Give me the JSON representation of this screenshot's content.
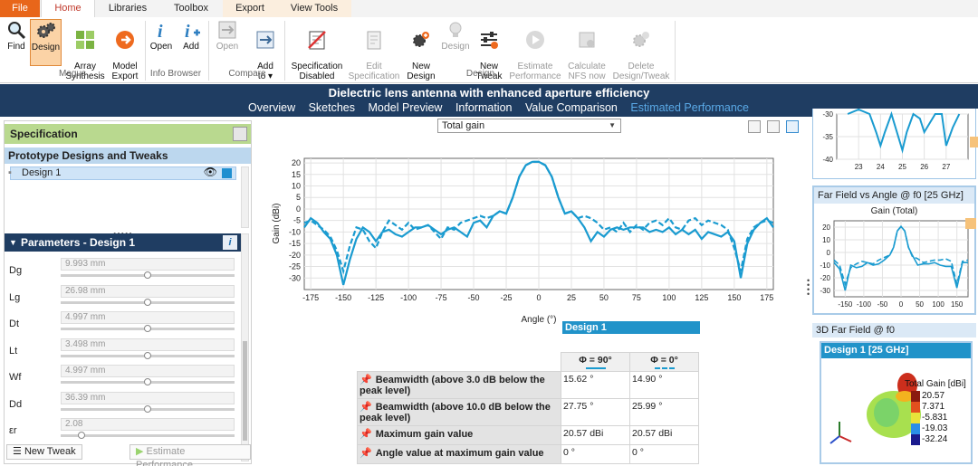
{
  "ribbon_tabs": [
    "File",
    "Home",
    "Libraries",
    "Toolbox",
    "Export",
    "View Tools"
  ],
  "ribbon": {
    "buttons": [
      {
        "label": "Find",
        "icon": "magnifier-icon"
      },
      {
        "label": "Design",
        "icon": "gears-icon",
        "active": true
      },
      {
        "label": "Array\nSynthesis",
        "icon": "array-grid-icon"
      },
      {
        "label": "Model\nExport",
        "icon": "orange-export-icon"
      },
      {
        "label": "Open",
        "icon": "info-i-icon"
      },
      {
        "label": "Add",
        "icon": "info-add-icon"
      },
      {
        "label": "Open",
        "icon": "compare-open-icon",
        "disabled": true
      },
      {
        "label": "Add\nto ▾",
        "icon": "compare-add-icon"
      },
      {
        "label": "Specification\nDisabled",
        "icon": "specification-disabled-icon"
      },
      {
        "label": "Edit\nSpecification",
        "icon": "edit-spec-icon",
        "disabled": true
      },
      {
        "label": "New\nDesign",
        "icon": "new-design-icon"
      },
      {
        "label": "Design",
        "icon": "bulb-icon",
        "disabled": true
      },
      {
        "label": "New\nTweak",
        "icon": "tweak-sliders-icon"
      },
      {
        "label": "Estimate\nPerformance",
        "icon": "play-icon",
        "disabled": true
      },
      {
        "label": "Calculate\nNFS now",
        "icon": "nfs-icon",
        "disabled": true
      },
      {
        "label": "Delete\nDesign/Tweak",
        "icon": "delete-gears-icon",
        "disabled": true
      }
    ],
    "groups": [
      "Magus",
      "Info Browser",
      "Compare",
      "Design"
    ]
  },
  "title": "Dielectric lens antenna with enhanced aperture efficiency",
  "subnav": [
    "Overview",
    "Sketches",
    "Model Preview",
    "Information",
    "Value Comparison",
    "Estimated Performance"
  ],
  "left": {
    "specification": "Specification",
    "prototypes": "Prototype Designs and Tweaks",
    "design_name": "Design 1",
    "grip": ".....",
    "parameters_title": "Parameters  -  Design 1",
    "parameters": [
      {
        "name": "Dg",
        "value": "9.993 mm",
        "pos": 0.5
      },
      {
        "name": "Lg",
        "value": "26.98 mm",
        "pos": 0.5
      },
      {
        "name": "Dt",
        "value": "4.997 mm",
        "pos": 0.5
      },
      {
        "name": "Lt",
        "value": "3.498 mm",
        "pos": 0.5
      },
      {
        "name": "Wf",
        "value": "4.997 mm",
        "pos": 0.5
      },
      {
        "name": "Dd",
        "value": "36.39 mm",
        "pos": 0.5
      },
      {
        "name": "εr",
        "value": "2.08",
        "pos": 0.12
      }
    ],
    "new_tweak": "New Tweak",
    "estimate": "Estimate Performance"
  },
  "center": {
    "dropdown": "Total gain",
    "design_label": "Design 1",
    "col_headers": [
      "Φ = 90°",
      "Φ = 0°"
    ],
    "rows": [
      {
        "label": "Beamwidth (above 3.0 dB below the peak level)",
        "v1": "15.62 °",
        "v2": "14.90 °"
      },
      {
        "label": "Beamwidth (above 10.0 dB below the peak level)",
        "v1": "27.75 °",
        "v2": "25.99 °"
      },
      {
        "label": "Maximum gain value",
        "v1": "20.57 dBi",
        "v2": "20.57 dBi"
      },
      {
        "label": "Angle value at maximum gain value",
        "v1": "0 °",
        "v2": "0 °"
      }
    ]
  },
  "right": {
    "far_field_title": "Far Field vs Angle @ f0 [25 GHz]",
    "gain_total": "Gain (Total)",
    "field3d_title": "3D Far Field @ f0",
    "design3d": "Design 1 [25 GHz]",
    "colorbar_title": "Total Gain [dBi]",
    "colorbar_values": [
      "20.57",
      "7.371",
      "-5.831",
      "-19.03",
      "-32.24"
    ]
  },
  "chart_data": [
    {
      "type": "line",
      "title": "",
      "xlabel": "Angle (°)",
      "ylabel": "Gain (dBi)",
      "xlim": [
        -180,
        180
      ],
      "ylim": [
        -35,
        22
      ],
      "xticks": [
        -175,
        -150,
        -125,
        -100,
        -75,
        -50,
        -25,
        0,
        25,
        50,
        75,
        100,
        125,
        150,
        175
      ],
      "yticks": [
        20,
        15,
        10,
        5,
        0,
        -5,
        -10,
        -15,
        -20,
        -25,
        -30
      ],
      "x": [
        -180,
        -175,
        -170,
        -165,
        -160,
        -155,
        -150,
        -145,
        -140,
        -135,
        -130,
        -125,
        -120,
        -115,
        -110,
        -105,
        -100,
        -95,
        -90,
        -85,
        -80,
        -75,
        -70,
        -65,
        -60,
        -55,
        -50,
        -45,
        -40,
        -35,
        -30,
        -25,
        -20,
        -15,
        -10,
        -5,
        0,
        5,
        10,
        15,
        20,
        25,
        30,
        35,
        40,
        45,
        50,
        55,
        60,
        65,
        70,
        75,
        80,
        85,
        90,
        95,
        100,
        105,
        110,
        115,
        120,
        125,
        130,
        135,
        140,
        145,
        150,
        155,
        160,
        165,
        170,
        175,
        180
      ],
      "series": [
        {
          "name": "Φ = 90°",
          "style": "solid",
          "color": "#1a9bd0",
          "values": [
            -8,
            -4,
            -6,
            -10,
            -13,
            -20,
            -33,
            -22,
            -13,
            -8,
            -10,
            -14,
            -10,
            -9,
            -11,
            -12,
            -10,
            -8,
            -8,
            -7,
            -9,
            -11,
            -9,
            -8,
            -10,
            -12,
            -6,
            -5,
            -8,
            -3,
            -1,
            -2,
            5,
            14,
            19,
            20.5,
            20.5,
            19,
            14,
            5,
            -2,
            -1,
            -4,
            -8,
            -14,
            -10,
            -12,
            -9,
            -8,
            -9,
            -8,
            -8,
            -8,
            -10,
            -9,
            -10,
            -8,
            -11,
            -9,
            -11,
            -9,
            -13,
            -10,
            -11,
            -12,
            -10,
            -14,
            -30,
            -15,
            -9,
            -6,
            -4,
            -8
          ]
        },
        {
          "name": "Φ = 0°",
          "style": "dashed",
          "color": "#1a9bd0",
          "values": [
            -6,
            -5,
            -7,
            -9,
            -12,
            -18,
            -27,
            -16,
            -8,
            -9,
            -14,
            -17,
            -10,
            -5,
            -7,
            -9,
            -6,
            -9,
            -8,
            -7,
            -10,
            -13,
            -8,
            -9,
            -6,
            -5,
            -4,
            -3,
            -4,
            -3,
            -1,
            -2,
            5,
            14,
            19,
            20.5,
            20.5,
            19,
            14,
            5,
            -2,
            -1,
            -4,
            -3,
            -4,
            -6,
            -9,
            -8,
            -10,
            -6,
            -10,
            -7,
            -9,
            -6,
            -5,
            -7,
            -4,
            -8,
            -9,
            -5,
            -4,
            -7,
            -5,
            -6,
            -7,
            -9,
            -17,
            -27,
            -13,
            -8,
            -6,
            -5,
            -6
          ]
        }
      ]
    },
    {
      "type": "line",
      "title": "",
      "xlim": [
        22,
        28
      ],
      "ylim": [
        -40,
        -30
      ],
      "xticks": [
        23,
        24,
        25,
        26,
        27
      ],
      "yticks": [
        -30,
        -35,
        -40
      ],
      "x": [
        22.5,
        23,
        23.5,
        23.8,
        24,
        24.2,
        24.5,
        25,
        25.2,
        25.5,
        25.8,
        26,
        26.5,
        26.8,
        27,
        27.3,
        27.6
      ],
      "series": [
        {
          "values": [
            -30,
            -29,
            -30,
            -34,
            -37,
            -34,
            -30,
            -38,
            -34,
            -30,
            -31,
            -34,
            -30,
            -30,
            -37,
            -33,
            -30
          ]
        }
      ]
    },
    {
      "type": "line",
      "title": "Gain (Total)",
      "xlim": [
        -180,
        180
      ],
      "ylim": [
        -35,
        25
      ],
      "xticks": [
        -150,
        -100,
        -50,
        0,
        50,
        100,
        150
      ],
      "yticks": [
        20,
        10,
        0,
        -10,
        -20,
        -30
      ],
      "x": [
        -180,
        -165,
        -150,
        -135,
        -120,
        -105,
        -90,
        -75,
        -60,
        -45,
        -30,
        -20,
        -10,
        0,
        10,
        20,
        30,
        45,
        60,
        75,
        90,
        105,
        120,
        135,
        150,
        165,
        180
      ],
      "series": [
        {
          "style": "solid",
          "values": [
            -8,
            -13,
            -30,
            -10,
            -12,
            -11,
            -8,
            -10,
            -9,
            -6,
            -2,
            4,
            17,
            20.5,
            17,
            4,
            -2,
            -10,
            -9,
            -9,
            -8,
            -10,
            -11,
            -11,
            -28,
            -8,
            -8
          ]
        },
        {
          "style": "dashed",
          "values": [
            -6,
            -10,
            -25,
            -12,
            -9,
            -7,
            -8,
            -9,
            -6,
            -4,
            -2,
            4,
            17,
            20.5,
            17,
            4,
            -3,
            -5,
            -8,
            -7,
            -6,
            -6,
            -5,
            -7,
            -25,
            -7,
            -6
          ]
        }
      ]
    }
  ]
}
